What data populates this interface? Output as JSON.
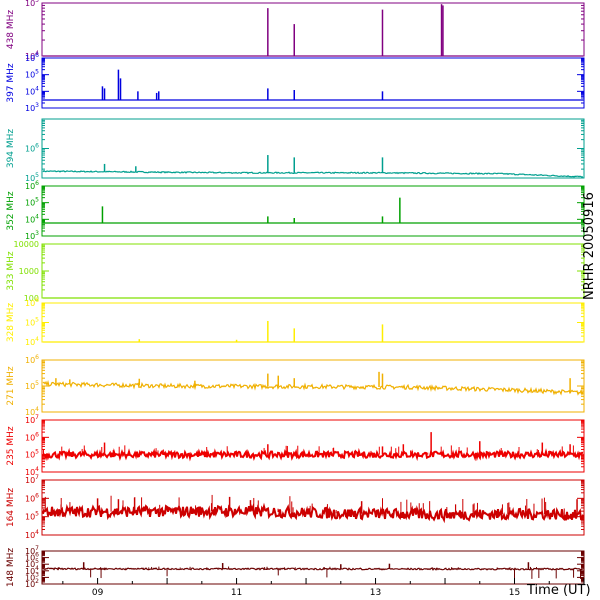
{
  "figure": {
    "title": "NRHR 20050916",
    "xlabel": "Time (UT)",
    "x_ticks": [
      "09",
      "11",
      "13",
      "15"
    ]
  },
  "chart_data": [
    {
      "type": "line",
      "channel": "438 MHz",
      "color": "#800080",
      "yscale": "log",
      "ylim": [
        10000,
        100000
      ],
      "ytick_labels": [
        "10^4",
        "10^5"
      ],
      "baseline": 10000,
      "spikes": [
        [
          11.45,
          80000
        ],
        [
          11.83,
          40000
        ],
        [
          13.1,
          75000
        ],
        [
          13.95,
          95000
        ],
        [
          13.97,
          90000
        ]
      ],
      "noise": 0
    },
    {
      "type": "line",
      "channel": "397 MHz",
      "color": "#0000e0",
      "yscale": "log",
      "ylim": [
        1000,
        1000000
      ],
      "ytick_labels": [
        "10^3",
        "10^4",
        "10^5",
        "10^6"
      ],
      "baseline": 3000,
      "spikes": [
        [
          9.07,
          20000
        ],
        [
          9.1,
          15000
        ],
        [
          9.3,
          200000
        ],
        [
          9.33,
          60000
        ],
        [
          9.58,
          10000
        ],
        [
          9.85,
          8000
        ],
        [
          9.88,
          10000
        ],
        [
          11.45,
          15000
        ],
        [
          11.83,
          12000
        ],
        [
          13.1,
          10000
        ]
      ],
      "noise": 0
    },
    {
      "type": "line",
      "channel": "394 MHz",
      "color": "#009f8f",
      "yscale": "log",
      "ylim": [
        100000,
        10000000
      ],
      "ytick_labels": [
        "10^5",
        "10^6"
      ],
      "baseline": 170000,
      "trend": [
        [
          8.2,
          170000
        ],
        [
          11.0,
          150000
        ],
        [
          13.0,
          150000
        ],
        [
          14.8,
          140000
        ],
        [
          16.0,
          110000
        ]
      ],
      "spikes": [
        [
          9.1,
          300000
        ],
        [
          9.55,
          250000
        ],
        [
          11.45,
          600000
        ],
        [
          11.83,
          500000
        ],
        [
          13.1,
          500000
        ]
      ],
      "noise": 0.02
    },
    {
      "type": "line",
      "channel": "352 MHz",
      "color": "#00a000",
      "yscale": "log",
      "ylim": [
        1000,
        1000000
      ],
      "ytick_labels": [
        "10^3",
        "10^4",
        "10^5",
        "10^6"
      ],
      "baseline": 6000,
      "spikes": [
        [
          9.07,
          60000
        ],
        [
          11.45,
          15000
        ],
        [
          11.83,
          12000
        ],
        [
          13.1,
          15000
        ],
        [
          13.35,
          200000
        ]
      ],
      "noise": 0
    },
    {
      "type": "line",
      "channel": "333 MHz",
      "color": "#80e000",
      "yscale": "log",
      "ylim": [
        100,
        10000
      ],
      "ytick_labels": [
        "100",
        "1000",
        "10000"
      ],
      "baseline": 100,
      "spikes": [],
      "noise": 0
    },
    {
      "type": "line",
      "channel": "328 MHz",
      "color": "#ffee00",
      "yscale": "log",
      "ylim": [
        10000,
        1000000
      ],
      "ytick_labels": [
        "10^4",
        "10^5",
        "10^6"
      ],
      "baseline": 10000,
      "spikes": [
        [
          9.6,
          14000
        ],
        [
          11.0,
          13000
        ],
        [
          11.45,
          120000
        ],
        [
          11.83,
          50000
        ],
        [
          13.1,
          80000
        ]
      ],
      "noise": 0
    },
    {
      "type": "line",
      "channel": "271 MHz",
      "color": "#f0b000",
      "yscale": "log",
      "ylim": [
        10000,
        1000000
      ],
      "ytick_labels": [
        "10^4",
        "10^5",
        "10^6"
      ],
      "baseline": 110000,
      "trend": [
        [
          8.2,
          120000
        ],
        [
          10.0,
          100000
        ],
        [
          12.0,
          95000
        ],
        [
          13.5,
          90000
        ],
        [
          15.0,
          70000
        ],
        [
          16.0,
          55000
        ]
      ],
      "spikes": [
        [
          8.4,
          200000
        ],
        [
          8.6,
          180000
        ],
        [
          9.6,
          190000
        ],
        [
          10.4,
          160000
        ],
        [
          11.45,
          300000
        ],
        [
          11.6,
          250000
        ],
        [
          11.83,
          200000
        ],
        [
          13.05,
          350000
        ],
        [
          13.1,
          300000
        ],
        [
          15.8,
          200000
        ]
      ],
      "noise": 0.08
    },
    {
      "type": "line",
      "channel": "235 MHz",
      "color": "#ee0000",
      "yscale": "log",
      "ylim": [
        10000,
        10000000
      ],
      "ytick_labels": [
        "10^4",
        "10^5",
        "10^6",
        "10^7"
      ],
      "baseline": 100000,
      "trend": [
        [
          8.2,
          100000
        ],
        [
          16.0,
          100000
        ]
      ],
      "spikes": [
        [
          9.1,
          500000
        ],
        [
          11.45,
          400000
        ],
        [
          13.1,
          300000
        ],
        [
          13.4,
          400000
        ],
        [
          13.8,
          2000000
        ],
        [
          14.5,
          600000
        ],
        [
          15.4,
          500000
        ],
        [
          15.8,
          400000
        ]
      ],
      "noise": 0.18
    },
    {
      "type": "line",
      "channel": "164 MHz",
      "color": "#cc0000",
      "yscale": "log",
      "ylim": [
        10000,
        10000000
      ],
      "ytick_labels": [
        "10^4",
        "10^5",
        "10^6",
        "10^7"
      ],
      "baseline": 180000,
      "trend": [
        [
          8.2,
          180000
        ],
        [
          11.0,
          200000
        ],
        [
          12.5,
          150000
        ],
        [
          14.0,
          130000
        ],
        [
          15.5,
          140000
        ],
        [
          16.0,
          110000
        ]
      ],
      "spikes": [
        [
          9.0,
          1000000
        ],
        [
          9.3,
          900000
        ],
        [
          10.9,
          1200000
        ],
        [
          11.2,
          800000
        ],
        [
          12.8,
          700000
        ],
        [
          15.9,
          900000
        ]
      ],
      "noise": 0.3
    },
    {
      "type": "line",
      "channel": "148 MHz",
      "color": "#6a0000",
      "yscale": "log",
      "ylim": [
        100,
        10000000
      ],
      "ytick_labels": [
        "10^2",
        "10^3",
        "10^4",
        "10^5",
        "10^6",
        "10^7"
      ],
      "baseline": 20000,
      "trend": [
        [
          8.2,
          20000
        ],
        [
          16.0,
          18000
        ]
      ],
      "spikes": [
        [
          8.8,
          200000
        ],
        [
          10.8,
          150000
        ],
        [
          12.5,
          100000
        ],
        [
          13.2,
          120000
        ],
        [
          15.2,
          200000
        ]
      ],
      "dips": [
        [
          8.9,
          1000
        ],
        [
          9.05,
          800
        ],
        [
          10.0,
          1500
        ],
        [
          11.6,
          2000
        ],
        [
          12.3,
          1000
        ],
        [
          15.0,
          500
        ],
        [
          15.25,
          600
        ],
        [
          15.35,
          800
        ],
        [
          15.6,
          700
        ],
        [
          15.85,
          900
        ],
        [
          15.95,
          600
        ]
      ],
      "noise": 0.12
    }
  ]
}
